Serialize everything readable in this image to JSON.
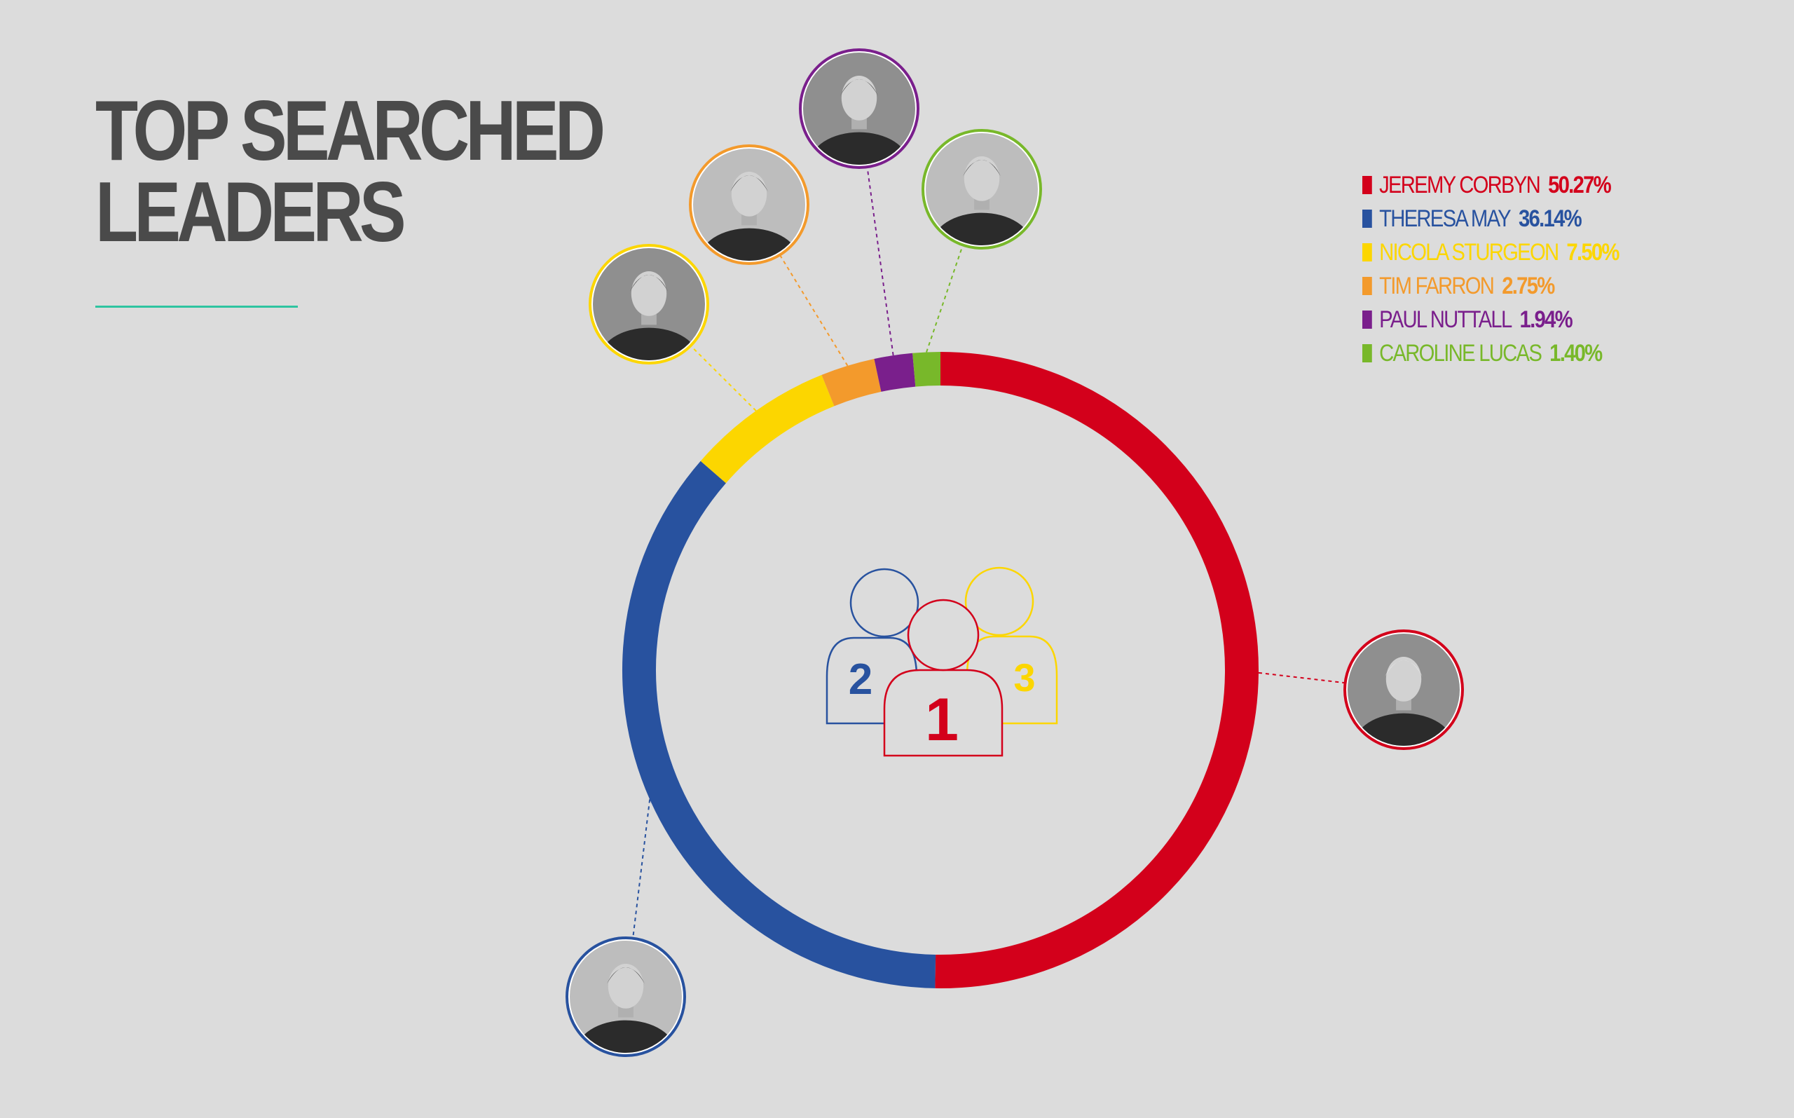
{
  "title": {
    "line1": "TOP SEARCHED",
    "line2": "LEADERS"
  },
  "colors": {
    "background": "#dcdcdc",
    "title": "#4a4a4a",
    "rule": "#2ec4a0"
  },
  "chart_data": {
    "type": "pie",
    "variant": "donut",
    "title": "TOP SEARCHED LEADERS",
    "categories": [
      "JEREMY CORBYN",
      "THERESA MAY",
      "NICOLA STURGEON",
      "TIM FARRON",
      "PAUL NUTTALL",
      "CAROLINE LUCAS"
    ],
    "values": [
      50.27,
      36.14,
      7.5,
      2.75,
      1.94,
      1.4
    ],
    "labels": [
      "50.27%",
      "36.14%",
      "7.50%",
      "2.75%",
      "1.94%",
      "1.40%"
    ],
    "colors": [
      "#d3001b",
      "#28529f",
      "#fcd600",
      "#f39a2c",
      "#7a1f8c",
      "#78b82a"
    ],
    "legend_position": "top-right",
    "start": "top, clockwise",
    "center_icon": {
      "ranks": [
        "1",
        "2",
        "3"
      ]
    },
    "portraits": [
      {
        "name": "JEREMY CORBYN",
        "icon": "portrait-icon"
      },
      {
        "name": "THERESA MAY",
        "icon": "portrait-icon"
      },
      {
        "name": "NICOLA STURGEON",
        "icon": "portrait-icon"
      },
      {
        "name": "TIM FARRON",
        "icon": "portrait-icon"
      },
      {
        "name": "PAUL NUTTALL",
        "icon": "portrait-icon"
      },
      {
        "name": "CAROLINE LUCAS",
        "icon": "portrait-icon"
      }
    ]
  }
}
